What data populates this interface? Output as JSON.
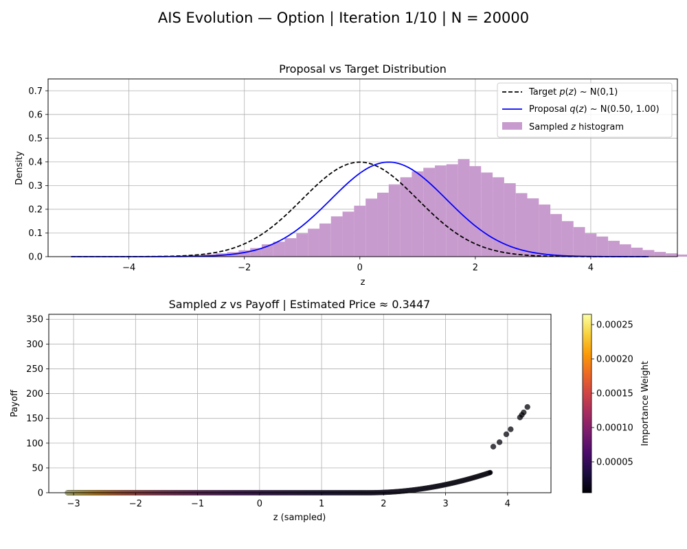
{
  "figure": {
    "suptitle": "AIS Evolution — Option | Iteration 1/10 | N = 20000"
  },
  "chart_data": [
    {
      "type": "line",
      "title": "Proposal vs Target Distribution",
      "xlabel": "z",
      "ylabel": "Density",
      "xlim": [
        -5.4,
        5.5
      ],
      "ylim": [
        0,
        0.75
      ],
      "xticks": [
        -4,
        -2,
        0,
        2,
        4
      ],
      "xtick_labels": [
        "−4",
        "−2",
        "0",
        "2",
        "4"
      ],
      "yticks": [
        0.0,
        0.1,
        0.2,
        0.3,
        0.4,
        0.5,
        0.6,
        0.7
      ],
      "ytick_labels": [
        "0.0",
        "0.1",
        "0.2",
        "0.3",
        "0.4",
        "0.5",
        "0.6",
        "0.7"
      ],
      "grid": true,
      "legend_position": "top-right",
      "target": {
        "mu": 0.0,
        "sigma": 1.0,
        "x_range": [
          -5,
          5
        ],
        "color": "#000000",
        "dash": "dashed"
      },
      "proposal": {
        "mu": 0.5,
        "sigma": 1.0,
        "x_range": [
          -5,
          5
        ],
        "color": "#0000ff"
      },
      "histogram": {
        "color": "#c89bce",
        "bin_width": 0.2,
        "bins_start": -3.5,
        "counts_density": [
          0.002,
          0.003,
          0.005,
          0.007,
          0.01,
          0.014,
          0.019,
          0.027,
          0.036,
          0.052,
          0.063,
          0.078,
          0.098,
          0.118,
          0.14,
          0.17,
          0.19,
          0.215,
          0.245,
          0.27,
          0.305,
          0.335,
          0.36,
          0.375,
          0.385,
          0.39,
          0.412,
          0.382,
          0.355,
          0.335,
          0.31,
          0.268,
          0.246,
          0.22,
          0.18,
          0.15,
          0.125,
          0.098,
          0.085,
          0.067,
          0.052,
          0.038,
          0.028,
          0.02,
          0.014,
          0.009,
          0.006,
          0.004,
          0.002,
          0.001
        ]
      },
      "legend": [
        {
          "key": "target",
          "label": "Target p(z) ~ N(0,1)"
        },
        {
          "key": "proposal",
          "label": "Proposal q(z) ~ N(0.50, 1.00)"
        },
        {
          "key": "histogram",
          "label": "Sampled z histogram"
        }
      ]
    },
    {
      "type": "scatter",
      "title": "Sampled z vs Payoff | Estimated Price ≈ 0.3447",
      "xlabel": "z (sampled)",
      "ylabel": "Payoff",
      "xlim": [
        -3.4,
        4.7
      ],
      "ylim": [
        0,
        360
      ],
      "xticks": [
        -3,
        -2,
        -1,
        0,
        1,
        2,
        3,
        4
      ],
      "xtick_labels": [
        "−3",
        "−2",
        "−1",
        "0",
        "1",
        "2",
        "3",
        "4"
      ],
      "yticks": [
        0,
        50,
        100,
        150,
        200,
        250,
        300,
        350
      ],
      "ytick_labels": [
        "0",
        "50",
        "100",
        "150",
        "200",
        "250",
        "300",
        "350"
      ],
      "grid": true,
      "payoff_model": {
        "threshold": 1.75,
        "scale": 10.5,
        "power": 2
      },
      "z_min": -3.1,
      "z_max": 4.32,
      "n_points_drawn": 900,
      "outlier_points": [
        {
          "z": 3.77,
          "payoff": 93
        },
        {
          "z": 3.87,
          "payoff": 102
        },
        {
          "z": 3.98,
          "payoff": 118
        },
        {
          "z": 4.05,
          "payoff": 128
        },
        {
          "z": 4.2,
          "payoff": 152
        },
        {
          "z": 4.23,
          "payoff": 157
        },
        {
          "z": 4.26,
          "payoff": 162
        },
        {
          "z": 4.32,
          "payoff": 173
        }
      ],
      "colorbar": {
        "label": "Importance Weight",
        "range": [
          5e-06,
          0.000265
        ],
        "ticks": [
          5e-05,
          0.0001,
          0.00015,
          0.0002,
          0.00025
        ],
        "tick_labels": [
          "0.00005",
          "0.00010",
          "0.00015",
          "0.00020",
          "0.00025"
        ],
        "colormap": "inferno",
        "stops": [
          "#000004",
          "#1b0c41",
          "#4a0c6b",
          "#781c6d",
          "#a52c60",
          "#cf4446",
          "#ed6925",
          "#fb9b06",
          "#f7d13d",
          "#fcffa4"
        ]
      }
    }
  ]
}
